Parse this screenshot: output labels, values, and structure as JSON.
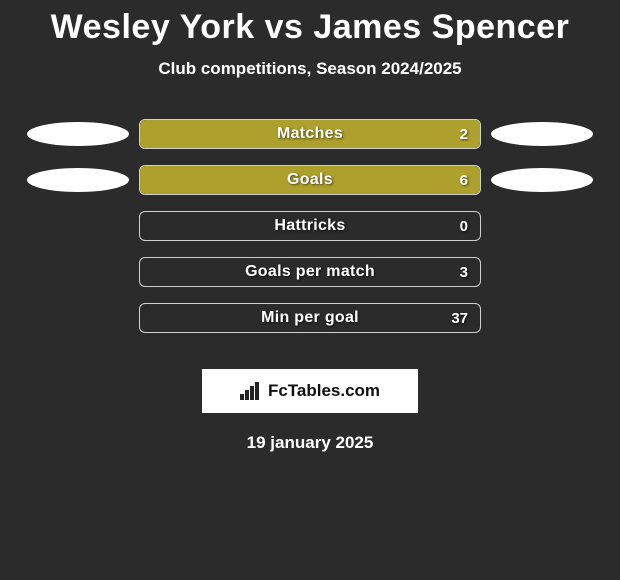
{
  "title": "Wesley York vs James Spencer",
  "subtitle": "Club competitions, Season 2024/2025",
  "brand": "FcTables.com",
  "date": "19 january 2025",
  "colors": {
    "background": "#2b2b2b",
    "bar_border": "#cfcfcf",
    "pill": "#ffffff",
    "text": "#ffffff"
  },
  "stats": [
    {
      "label": "Matches",
      "value": "2",
      "fill_pct": 100,
      "fill_color": "#ada02c",
      "left_pill": true,
      "right_pill": true
    },
    {
      "label": "Goals",
      "value": "6",
      "fill_pct": 100,
      "fill_color": "#ada02c",
      "left_pill": true,
      "right_pill": true
    },
    {
      "label": "Hattricks",
      "value": "0",
      "fill_pct": 0,
      "fill_color": "#ada02c",
      "left_pill": false,
      "right_pill": false
    },
    {
      "label": "Goals per match",
      "value": "3",
      "fill_pct": 0,
      "fill_color": "#ada02c",
      "left_pill": false,
      "right_pill": false
    },
    {
      "label": "Min per goal",
      "value": "37",
      "fill_pct": 0,
      "fill_color": "#ada02c",
      "left_pill": false,
      "right_pill": false
    }
  ]
}
